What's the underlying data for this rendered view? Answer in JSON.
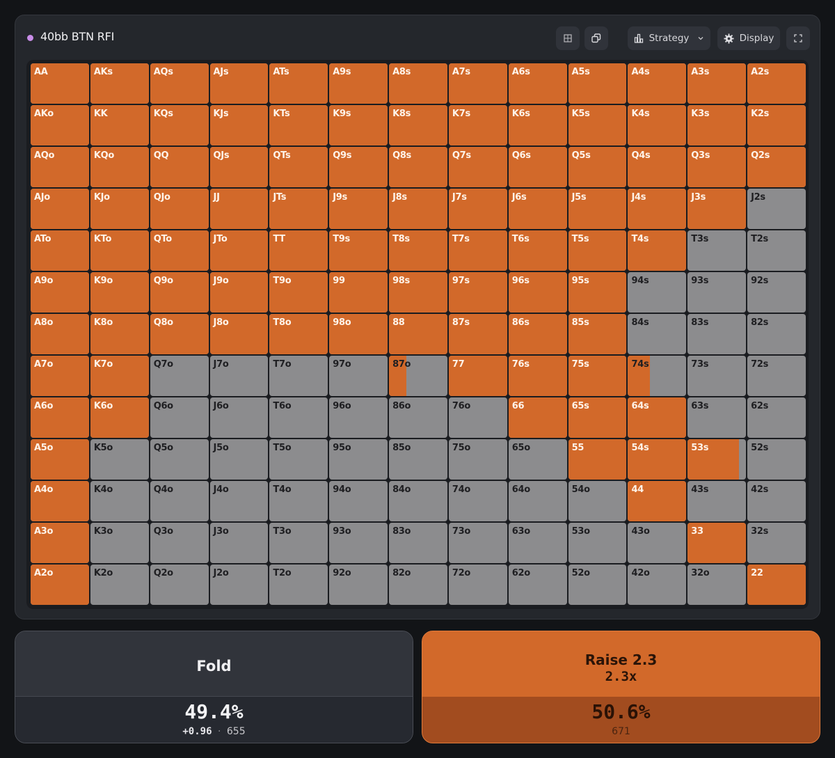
{
  "header": {
    "title": "40bb BTN RFI",
    "strategy_label": "Strategy",
    "display_label": "Display",
    "icons": {
      "dot": "purple-dot-icon",
      "grid": "grid-icon",
      "copy": "copy-icon",
      "strategy": "bar-chart-icon",
      "chevron": "chevron-down-icon",
      "display": "gear-icon",
      "fullscreen": "fullscreen-icon"
    }
  },
  "colors": {
    "raise": "#d2692a",
    "fold": "#8c8c8e",
    "background": "#121417",
    "accent_dot": "#c88de8"
  },
  "matrix": {
    "ranks": [
      "A",
      "K",
      "Q",
      "J",
      "T",
      "9",
      "8",
      "7",
      "6",
      "5",
      "4",
      "3",
      "2"
    ],
    "rows": [
      [
        "AA",
        "AKs",
        "AQs",
        "AJs",
        "ATs",
        "A9s",
        "A8s",
        "A7s",
        "A6s",
        "A5s",
        "A4s",
        "A3s",
        "A2s"
      ],
      [
        "AKo",
        "KK",
        "KQs",
        "KJs",
        "KTs",
        "K9s",
        "K8s",
        "K7s",
        "K6s",
        "K5s",
        "K4s",
        "K3s",
        "K2s"
      ],
      [
        "AQo",
        "KQo",
        "QQ",
        "QJs",
        "QTs",
        "Q9s",
        "Q8s",
        "Q7s",
        "Q6s",
        "Q5s",
        "Q4s",
        "Q3s",
        "Q2s"
      ],
      [
        "AJo",
        "KJo",
        "QJo",
        "JJ",
        "JTs",
        "J9s",
        "J8s",
        "J7s",
        "J6s",
        "J5s",
        "J4s",
        "J3s",
        "J2s"
      ],
      [
        "ATo",
        "KTo",
        "QTo",
        "JTo",
        "TT",
        "T9s",
        "T8s",
        "T7s",
        "T6s",
        "T5s",
        "T4s",
        "T3s",
        "T2s"
      ],
      [
        "A9o",
        "K9o",
        "Q9o",
        "J9o",
        "T9o",
        "99",
        "98s",
        "97s",
        "96s",
        "95s",
        "94s",
        "93s",
        "92s"
      ],
      [
        "A8o",
        "K8o",
        "Q8o",
        "J8o",
        "T8o",
        "98o",
        "88",
        "87s",
        "86s",
        "85s",
        "84s",
        "83s",
        "82s"
      ],
      [
        "A7o",
        "K7o",
        "Q7o",
        "J7o",
        "T7o",
        "97o",
        "87o",
        "77",
        "76s",
        "75s",
        "74s",
        "73s",
        "72s"
      ],
      [
        "A6o",
        "K6o",
        "Q6o",
        "J6o",
        "T6o",
        "96o",
        "86o",
        "76o",
        "66",
        "65s",
        "64s",
        "63s",
        "62s"
      ],
      [
        "A5o",
        "K5o",
        "Q5o",
        "J5o",
        "T5o",
        "95o",
        "85o",
        "75o",
        "65o",
        "55",
        "54s",
        "53s",
        "52s"
      ],
      [
        "A4o",
        "K4o",
        "Q4o",
        "J4o",
        "T4o",
        "94o",
        "84o",
        "74o",
        "64o",
        "54o",
        "44",
        "43s",
        "42s"
      ],
      [
        "A3o",
        "K3o",
        "Q3o",
        "J3o",
        "T3o",
        "93o",
        "83o",
        "73o",
        "63o",
        "53o",
        "43o",
        "33",
        "32s"
      ],
      [
        "A2o",
        "K2o",
        "Q2o",
        "J2o",
        "T2o",
        "92o",
        "82o",
        "72o",
        "62o",
        "52o",
        "42o",
        "32o",
        "22"
      ]
    ],
    "raise_freq": [
      [
        1,
        1,
        1,
        1,
        1,
        1,
        1,
        1,
        1,
        1,
        1,
        1,
        1
      ],
      [
        1,
        1,
        1,
        1,
        1,
        1,
        1,
        1,
        1,
        1,
        1,
        1,
        1
      ],
      [
        1,
        1,
        1,
        1,
        1,
        1,
        1,
        1,
        1,
        1,
        1,
        1,
        1
      ],
      [
        1,
        1,
        1,
        1,
        1,
        1,
        1,
        1,
        1,
        1,
        1,
        1,
        0
      ],
      [
        1,
        1,
        1,
        1,
        1,
        1,
        1,
        1,
        1,
        1,
        1,
        0,
        0
      ],
      [
        1,
        1,
        1,
        1,
        1,
        1,
        1,
        1,
        1,
        1,
        0,
        0,
        0
      ],
      [
        1,
        1,
        1,
        1,
        1,
        1,
        1,
        1,
        1,
        1,
        0,
        0,
        0
      ],
      [
        1,
        1,
        0,
        0,
        0,
        0,
        0.3,
        1,
        1,
        1,
        0.38,
        0,
        0
      ],
      [
        1,
        1,
        0,
        0,
        0,
        0,
        0,
        0,
        1,
        1,
        1,
        0,
        0
      ],
      [
        1,
        0,
        0,
        0,
        0,
        0,
        0,
        0,
        0,
        1,
        1,
        0.88,
        0
      ],
      [
        1,
        0,
        0,
        0,
        0,
        0,
        0,
        0,
        0,
        0,
        1,
        0,
        0
      ],
      [
        1,
        0,
        0,
        0,
        0,
        0,
        0,
        0,
        0,
        0,
        0,
        1,
        0
      ],
      [
        1,
        0,
        0,
        0,
        0,
        0,
        0,
        0,
        0,
        0,
        0,
        0,
        1
      ]
    ]
  },
  "actions": {
    "fold": {
      "label": "Fold",
      "percent": "49.4%",
      "ev": "+0.96",
      "separator": "·",
      "combos": "655"
    },
    "raise": {
      "label": "Raise 2.3",
      "size": "2.3x",
      "percent": "50.6%",
      "combos": "671"
    }
  }
}
